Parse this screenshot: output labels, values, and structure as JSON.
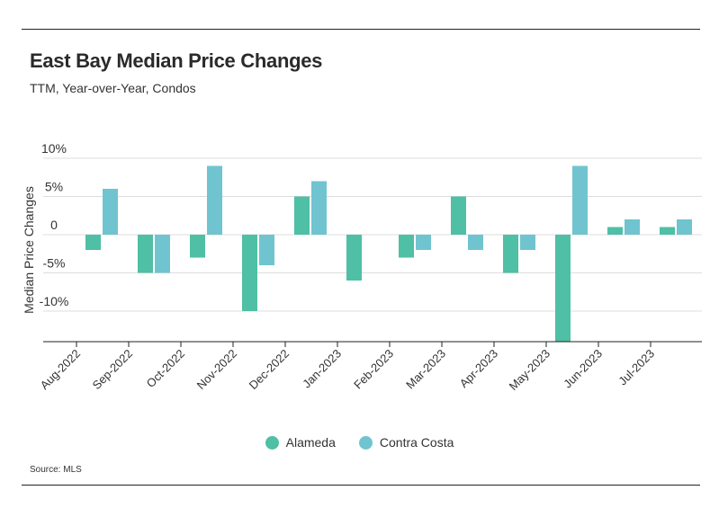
{
  "header": {
    "title": "East Bay Median Price Changes",
    "subtitle": "TTM, Year-over-Year, Condos"
  },
  "footer": {
    "source": "Source: MLS"
  },
  "colors": {
    "alameda": "#4fbfa5",
    "contra_costa": "#70c4cf",
    "grid": "#dddddd",
    "axis": "#222222"
  },
  "chart_data": {
    "type": "bar",
    "title": "East Bay Median Price Changes",
    "subtitle": "TTM, Year-over-Year, Condos",
    "xlabel": "",
    "ylabel": "Median Price Changes",
    "ylim": [
      -14,
      10
    ],
    "yticks": [
      10,
      5,
      0,
      -5,
      -10
    ],
    "ytick_labels": [
      "10%",
      "5%",
      "0",
      "-5%",
      "-10%"
    ],
    "grid": true,
    "legend_position": "bottom-center",
    "categories": [
      "Aug-2022",
      "Sep-2022",
      "Oct-2022",
      "Nov-2022",
      "Dec-2022",
      "Jan-2023",
      "Feb-2023",
      "Mar-2023",
      "Apr-2023",
      "May-2023",
      "Jun-2023",
      "Jul-2023"
    ],
    "series": [
      {
        "name": "Alameda",
        "values": [
          -2,
          -5,
          -3,
          -10,
          5,
          -6,
          -3,
          5,
          -5,
          -14,
          1,
          1
        ]
      },
      {
        "name": "Contra Costa",
        "values": [
          6,
          -5,
          9,
          -4,
          7,
          null,
          -2,
          -2,
          -2,
          9,
          2,
          2
        ]
      }
    ]
  }
}
